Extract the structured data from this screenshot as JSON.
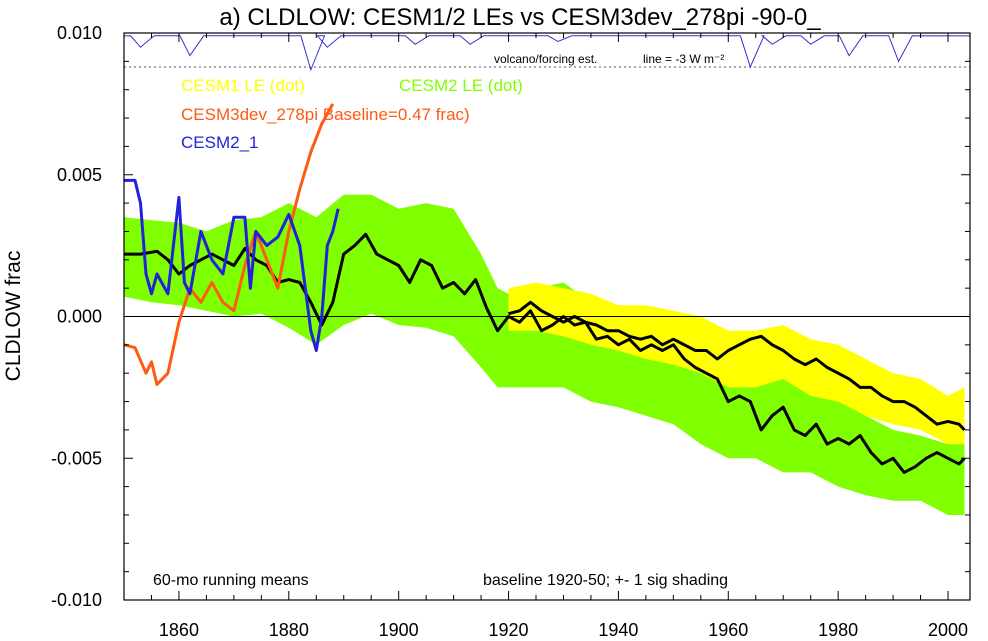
{
  "chart_data": {
    "type": "line",
    "title": "a) CLDLOW: CESM1/2 LEs vs CESM3dev_278pi -90-0_",
    "ylabel": "CLDLOW frac",
    "xlabel": "",
    "xlim": [
      1850,
      2004
    ],
    "ylim": [
      -0.01,
      0.01
    ],
    "x_ticks": [
      1860,
      1880,
      1900,
      1920,
      1940,
      1960,
      1980,
      2000
    ],
    "y_ticks": [
      {
        "value": 0.01,
        "label": "0.010"
      },
      {
        "value": 0.005,
        "label": "0.005"
      },
      {
        "value": 0.0,
        "label": "0.000"
      },
      {
        "value": -0.005,
        "label": "-0.005"
      },
      {
        "value": -0.01,
        "label": "-0.010"
      }
    ],
    "zero_line": true,
    "volcano_reference": {
      "y": 0.0088,
      "label": "volcano/forcing est.",
      "line_label": "line = -3 W m⁻²"
    },
    "volcano_forcing": {
      "color": "#3333cc",
      "dips": [
        [
          1853,
          0.0095
        ],
        [
          1862,
          0.0092
        ],
        [
          1884,
          0.0087
        ],
        [
          1887,
          0.0095
        ],
        [
          1903,
          0.0096
        ],
        [
          1913,
          0.0096
        ],
        [
          1929,
          0.0097
        ],
        [
          1964,
          0.0088
        ],
        [
          1968,
          0.0096
        ],
        [
          1975,
          0.0096
        ],
        [
          1982,
          0.0092
        ],
        [
          1991,
          0.009
        ]
      ]
    },
    "annotations": {
      "bottom_left": "60-mo running means",
      "bottom_right": "baseline 1920-50; +- 1 sig shading"
    },
    "legend": [
      {
        "text": "CESM1 LE (dot)",
        "color": "#ffff00"
      },
      {
        "text": "CESM2 LE (dot)",
        "color": "#7fff00"
      },
      {
        "text": "CESM3dev_278pi Baseline=0.47 frac)",
        "color": "#ff5a12"
      },
      {
        "text": "CESM2_1",
        "color": "#2222dd"
      }
    ],
    "bands": [
      {
        "name": "CESM2 LE",
        "color": "#7fff00",
        "x": [
          1850,
          1855,
          1860,
          1865,
          1870,
          1875,
          1880,
          1885,
          1890,
          1895,
          1900,
          1905,
          1910,
          1915,
          1918,
          1920,
          1925,
          1930,
          1935,
          1940,
          1945,
          1950,
          1955,
          1960,
          1965,
          1970,
          1975,
          1980,
          1985,
          1990,
          1995,
          2000,
          2003
        ],
        "upper": [
          0.0035,
          0.0034,
          0.0033,
          0.003,
          0.0034,
          0.0035,
          0.004,
          0.0035,
          0.0043,
          0.0043,
          0.0038,
          0.004,
          0.0038,
          0.0022,
          0.001,
          0.0008,
          0.001,
          0.0012,
          0.0005,
          0.0003,
          0.0002,
          0.0,
          -0.0005,
          -0.001,
          -0.0015,
          -0.0018,
          -0.0022,
          -0.0028,
          -0.0035,
          -0.004,
          -0.0042,
          -0.0045,
          -0.0045
        ],
        "lower": [
          0.0007,
          0.0005,
          0.0004,
          0.0002,
          0.0,
          0.0001,
          -0.0004,
          -0.001,
          -0.0003,
          0.0001,
          -0.0003,
          -0.0004,
          -0.0007,
          -0.0018,
          -0.0025,
          -0.0025,
          -0.0025,
          -0.0025,
          -0.003,
          -0.0032,
          -0.0035,
          -0.0038,
          -0.0045,
          -0.005,
          -0.005,
          -0.0055,
          -0.0055,
          -0.006,
          -0.0063,
          -0.0065,
          -0.0065,
          -0.007,
          -0.007
        ]
      },
      {
        "name": "CESM1 LE",
        "color": "#ffff00",
        "x": [
          1920,
          1925,
          1930,
          1935,
          1940,
          1945,
          1950,
          1955,
          1960,
          1965,
          1970,
          1975,
          1980,
          1985,
          1990,
          1995,
          2000,
          2003
        ],
        "upper": [
          0.001,
          0.0012,
          0.001,
          0.0008,
          0.0004,
          0.0004,
          0.0002,
          0.0,
          -0.0005,
          -0.0005,
          -0.0003,
          -0.0008,
          -0.001,
          -0.0015,
          -0.002,
          -0.0022,
          -0.0028,
          -0.0025
        ],
        "lower": [
          -0.0005,
          -0.0005,
          -0.0007,
          -0.001,
          -0.0012,
          -0.0015,
          -0.0017,
          -0.002,
          -0.0025,
          -0.0025,
          -0.0022,
          -0.0028,
          -0.003,
          -0.0035,
          -0.0038,
          -0.004,
          -0.0045,
          -0.0045
        ]
      }
    ],
    "series": [
      {
        "name": "CESM2 LE",
        "color": "#000000",
        "x": [
          1850,
          1853,
          1856,
          1858,
          1860,
          1862,
          1864,
          1866,
          1868,
          1870,
          1872,
          1874,
          1876,
          1878,
          1880,
          1882,
          1884,
          1886,
          1888,
          1890,
          1892,
          1894,
          1896,
          1898,
          1900,
          1902,
          1904,
          1906,
          1908,
          1910,
          1912,
          1914,
          1916,
          1918,
          1920,
          1922,
          1924,
          1926,
          1928,
          1930,
          1932,
          1934,
          1936,
          1938,
          1940,
          1942,
          1944,
          1946,
          1948,
          1950,
          1952,
          1954,
          1956,
          1958,
          1960,
          1962,
          1964,
          1966,
          1968,
          1970,
          1972,
          1974,
          1976,
          1978,
          1980,
          1982,
          1984,
          1986,
          1988,
          1990,
          1992,
          1994,
          1996,
          1998,
          2000,
          2002,
          2003
        ],
        "y": [
          0.0022,
          0.0022,
          0.0023,
          0.002,
          0.0015,
          0.0018,
          0.002,
          0.0022,
          0.002,
          0.0018,
          0.0024,
          0.002,
          0.0018,
          0.0012,
          0.0013,
          0.0012,
          0.0005,
          -0.0003,
          0.0005,
          0.0022,
          0.0025,
          0.0029,
          0.0022,
          0.002,
          0.0018,
          0.0012,
          0.002,
          0.0018,
          0.001,
          0.0012,
          0.0008,
          0.0013,
          0.0003,
          -0.0005,
          0.0,
          -0.0002,
          0.0002,
          -0.0005,
          -0.0003,
          0.0,
          -0.0003,
          -0.0002,
          -0.0008,
          -0.0007,
          -0.001,
          -0.0008,
          -0.0012,
          -0.001,
          -0.0012,
          -0.001,
          -0.0015,
          -0.0018,
          -0.002,
          -0.0022,
          -0.003,
          -0.0028,
          -0.003,
          -0.004,
          -0.0035,
          -0.0032,
          -0.004,
          -0.0042,
          -0.0038,
          -0.0045,
          -0.0043,
          -0.0045,
          -0.0042,
          -0.0048,
          -0.0052,
          -0.005,
          -0.0055,
          -0.0053,
          -0.005,
          -0.0048,
          -0.005,
          -0.0052,
          -0.005
        ]
      },
      {
        "name": "CESM1 LE",
        "color": "#000000",
        "x": [
          1920,
          1922,
          1924,
          1926,
          1928,
          1930,
          1932,
          1934,
          1936,
          1938,
          1940,
          1942,
          1944,
          1946,
          1948,
          1950,
          1952,
          1954,
          1956,
          1958,
          1960,
          1962,
          1964,
          1966,
          1968,
          1970,
          1972,
          1974,
          1976,
          1978,
          1980,
          1982,
          1984,
          1986,
          1988,
          1990,
          1992,
          1994,
          1996,
          1998,
          2000,
          2002,
          2003
        ],
        "y": [
          0.0001,
          0.0002,
          0.0005,
          0.0002,
          0.0,
          -0.0002,
          0.0,
          -0.0002,
          -0.0003,
          -0.0005,
          -0.0005,
          -0.0007,
          -0.0008,
          -0.0007,
          -0.001,
          -0.0008,
          -0.001,
          -0.0012,
          -0.0012,
          -0.0015,
          -0.0012,
          -0.001,
          -0.0008,
          -0.0007,
          -0.001,
          -0.0012,
          -0.0015,
          -0.0017,
          -0.0015,
          -0.0018,
          -0.002,
          -0.0022,
          -0.0025,
          -0.0025,
          -0.0028,
          -0.003,
          -0.003,
          -0.0032,
          -0.0035,
          -0.0038,
          -0.0037,
          -0.0038,
          -0.004
        ]
      },
      {
        "name": "CESM3dev_278pi",
        "color": "#ff5a12",
        "x": [
          1850,
          1852,
          1854,
          1855,
          1856,
          1858,
          1860,
          1862,
          1864,
          1866,
          1868,
          1870,
          1872,
          1874,
          1876,
          1878,
          1880,
          1882,
          1884,
          1886,
          1888
        ],
        "y": [
          -0.001,
          -0.0011,
          -0.002,
          -0.0016,
          -0.0024,
          -0.002,
          -0.0002,
          0.001,
          0.0005,
          0.0012,
          0.0005,
          0.0002,
          0.0018,
          0.003,
          0.002,
          0.001,
          0.003,
          0.0045,
          0.0058,
          0.0068,
          0.0075
        ]
      },
      {
        "name": "CESM2_1",
        "color": "#2222dd",
        "x": [
          1850,
          1852,
          1853,
          1854,
          1855,
          1856,
          1858,
          1860,
          1861,
          1862,
          1864,
          1866,
          1868,
          1870,
          1872,
          1873,
          1874,
          1876,
          1878,
          1880,
          1882,
          1884,
          1885,
          1886,
          1887,
          1888,
          1889
        ],
        "y": [
          0.0048,
          0.0048,
          0.004,
          0.0015,
          0.0008,
          0.0015,
          0.0008,
          0.0042,
          0.0012,
          0.0008,
          0.003,
          0.002,
          0.0015,
          0.0035,
          0.0035,
          0.001,
          0.003,
          0.0025,
          0.0028,
          0.0036,
          0.0025,
          -0.0005,
          -0.0012,
          0.0,
          0.0025,
          0.003,
          0.0038
        ]
      }
    ]
  }
}
